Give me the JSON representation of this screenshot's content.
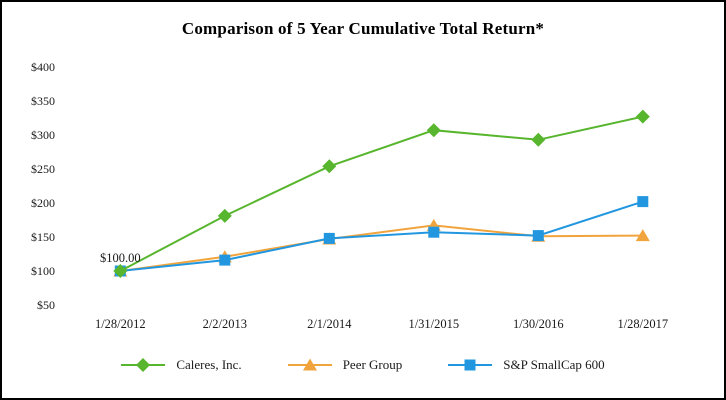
{
  "window": {
    "background": "#ffffff",
    "border_color": "#000000"
  },
  "chart_data": {
    "type": "line",
    "title": "Comparison of 5 Year Cumulative Total Return*",
    "xlabel": "",
    "ylabel": "",
    "x_labels": [
      "1/28/2012",
      "2/2/2013",
      "2/1/2014",
      "1/31/2015",
      "1/30/2016",
      "1/28/2017"
    ],
    "y_axis": {
      "min": 50,
      "max": 400,
      "step": 50,
      "tick_prefix": "$"
    },
    "y_tick_labels": [
      "$400",
      "$350",
      "$300",
      "$250",
      "$200",
      "$150",
      "$100",
      "$50"
    ],
    "grid": false,
    "legend_position": "bottom",
    "annotation": {
      "text": "$100.00",
      "x_index": 0,
      "value": 100
    },
    "series": [
      {
        "name": "Caleres, Inc.",
        "marker": "diamond",
        "color": "#58B62E",
        "values": [
          100,
          181,
          254,
          307,
          293,
          327
        ]
      },
      {
        "name": "Peer Group",
        "marker": "triangle",
        "color": "#F2A43C",
        "values": [
          100,
          121,
          147,
          167,
          151,
          152
        ]
      },
      {
        "name": "S&P SmallCap 600",
        "marker": "square",
        "color": "#2297E0",
        "values": [
          100,
          116,
          148,
          157,
          152,
          202
        ]
      }
    ]
  }
}
